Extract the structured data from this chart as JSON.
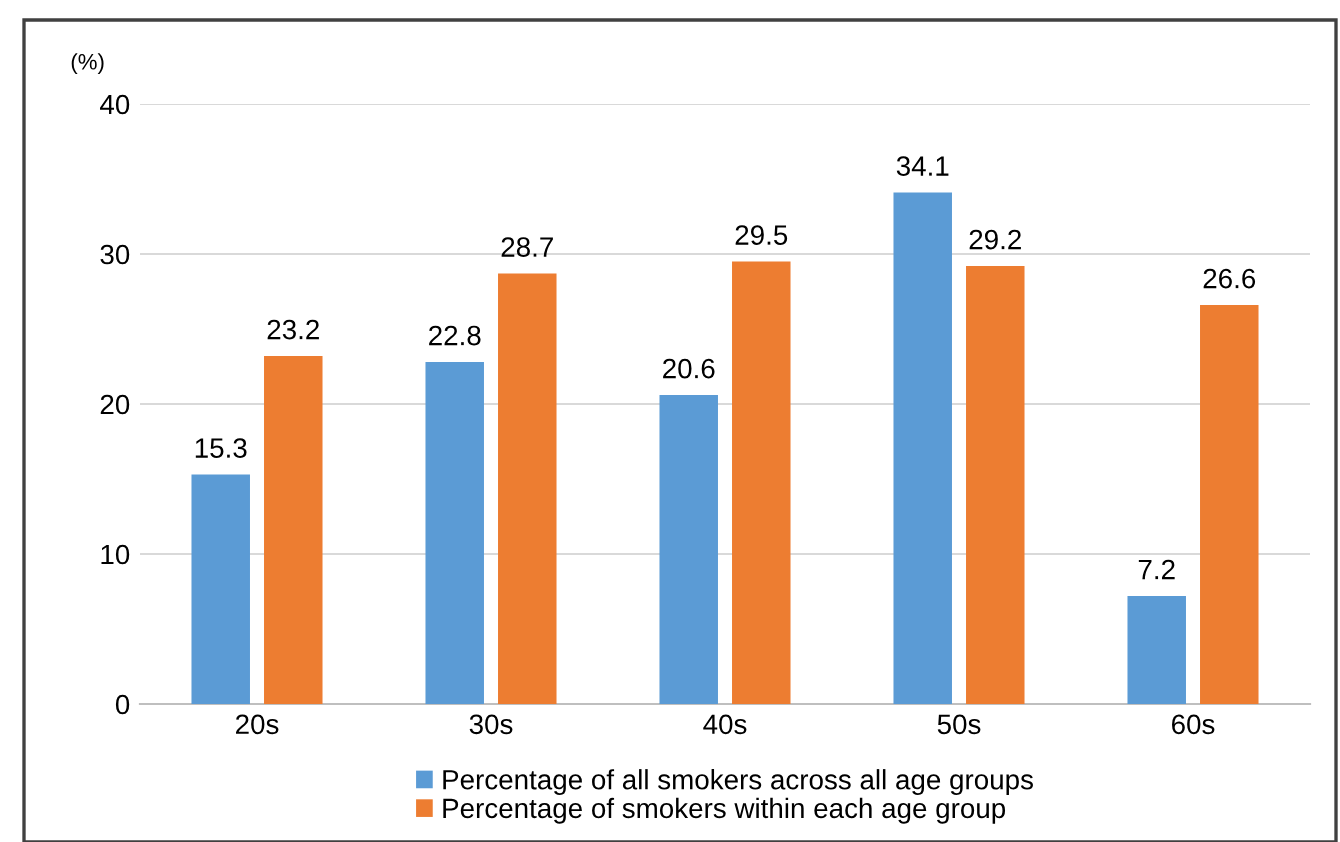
{
  "chart_data": {
    "type": "bar",
    "ylabel": "(%)",
    "categories": [
      "20s",
      "30s",
      "40s",
      "50s",
      "60s"
    ],
    "series": [
      {
        "name": "Percentage of all smokers across all age groups",
        "color": "#5b9bd5",
        "values": [
          15.3,
          22.8,
          20.6,
          34.1,
          7.2
        ]
      },
      {
        "name": "Percentage of smokers within each age group",
        "color": "#ed7d31",
        "values": [
          23.2,
          28.7,
          29.5,
          29.2,
          26.6
        ]
      }
    ],
    "ylim": [
      0,
      40
    ],
    "yticks": [
      0,
      10,
      20,
      30,
      40
    ],
    "grid": "y",
    "legend": "bottom",
    "data_labels": true
  }
}
